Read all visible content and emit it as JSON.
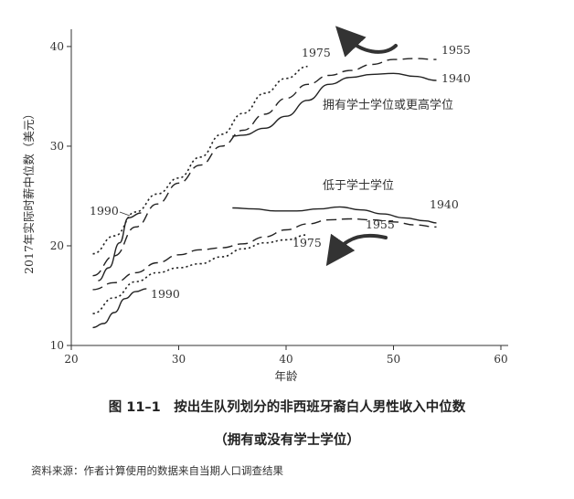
{
  "figure": {
    "title": "图 11–1　按出生队列划分的非西班牙裔白人男性收入中位数",
    "subtitle": "（拥有或没有学士学位）",
    "source": "资料来源：作者计算使用的数据来自当期人口调查结果"
  },
  "chart_data": {
    "type": "line",
    "xlabel": "年龄",
    "ylabel": "2017年实际时薪中位数（美元）",
    "xlim": [
      20,
      60
    ],
    "ylim": [
      10,
      41
    ],
    "xticks": [
      20,
      30,
      40,
      50,
      60
    ],
    "yticks": [
      10,
      20,
      30,
      40
    ],
    "group_labels": [
      {
        "id": "college",
        "text": "拥有学士学位或更高学位"
      },
      {
        "id": "noncollege",
        "text": "低于学士学位"
      }
    ],
    "series": [
      {
        "name": "1940",
        "group": "college",
        "style": "solid",
        "x": [
          35,
          36,
          38,
          40,
          42,
          44,
          46,
          48,
          50,
          52,
          54
        ],
        "y": [
          31.0,
          31.1,
          31.8,
          33.0,
          34.6,
          36.2,
          36.9,
          37.2,
          37.3,
          37.0,
          36.6
        ]
      },
      {
        "name": "1955",
        "group": "college",
        "style": "longdash",
        "x": [
          22,
          24,
          26,
          28,
          30,
          32,
          34,
          36,
          38,
          40,
          42,
          44,
          46,
          48,
          50,
          52,
          54
        ],
        "y": [
          17.0,
          19.0,
          21.9,
          24.2,
          26.3,
          28.1,
          30.0,
          31.6,
          33.2,
          34.8,
          36.2,
          37.1,
          37.6,
          38.2,
          38.7,
          38.8,
          38.7
        ]
      },
      {
        "name": "1975",
        "group": "college",
        "style": "dotted",
        "x": [
          22,
          24,
          26,
          28,
          30,
          32,
          34,
          36,
          38,
          40,
          42
        ],
        "y": [
          19.2,
          21.0,
          23.4,
          25.2,
          26.8,
          28.9,
          31.2,
          33.3,
          35.3,
          36.8,
          38.0
        ]
      },
      {
        "name": "1990",
        "group": "college",
        "style": "solid",
        "x": [
          22.5,
          23.5,
          24.5,
          25.3,
          26.5
        ],
        "y": [
          16.5,
          17.8,
          20.3,
          22.8,
          23.3
        ]
      },
      {
        "name": "1940",
        "group": "noncollege",
        "style": "solid",
        "x": [
          35,
          37,
          39,
          41,
          43,
          45,
          47,
          49,
          51,
          53,
          54
        ],
        "y": [
          23.8,
          23.7,
          23.5,
          23.5,
          23.7,
          23.9,
          23.6,
          23.2,
          22.8,
          22.5,
          22.3
        ]
      },
      {
        "name": "1955",
        "group": "noncollege",
        "style": "longdash",
        "x": [
          22,
          24,
          26,
          28,
          30,
          32,
          34,
          36,
          38,
          40,
          42,
          44,
          46,
          48,
          50,
          52,
          54
        ],
        "y": [
          15.6,
          16.3,
          17.3,
          18.3,
          19.1,
          19.6,
          19.8,
          20.2,
          20.9,
          21.6,
          22.2,
          22.6,
          22.7,
          22.6,
          22.4,
          22.1,
          21.9
        ]
      },
      {
        "name": "1975",
        "group": "noncollege",
        "style": "dotted",
        "x": [
          22,
          24,
          26,
          28,
          30,
          32,
          34,
          36,
          38,
          40,
          42
        ],
        "y": [
          13.2,
          14.8,
          16.4,
          17.3,
          17.8,
          18.2,
          18.9,
          19.7,
          20.3,
          20.6,
          21.1
        ]
      },
      {
        "name": "1990",
        "group": "noncollege",
        "style": "solid",
        "x": [
          22,
          23,
          24,
          25,
          26,
          27
        ],
        "y": [
          11.8,
          12.2,
          13.3,
          14.7,
          15.4,
          15.7
        ]
      }
    ],
    "series_labels": [
      {
        "text": "1975",
        "group": "college"
      },
      {
        "text": "1955",
        "group": "college"
      },
      {
        "text": "1940",
        "group": "college"
      },
      {
        "text": "1990",
        "group": "college"
      },
      {
        "text": "1940",
        "group": "noncollege"
      },
      {
        "text": "1955",
        "group": "noncollege"
      },
      {
        "text": "1975",
        "group": "noncollege"
      },
      {
        "text": "1990",
        "group": "noncollege"
      }
    ],
    "annotations": [
      {
        "type": "arrow",
        "group": "college",
        "direction": "left-up"
      },
      {
        "type": "arrow",
        "group": "noncollege",
        "direction": "left-down"
      }
    ],
    "grid": false
  }
}
